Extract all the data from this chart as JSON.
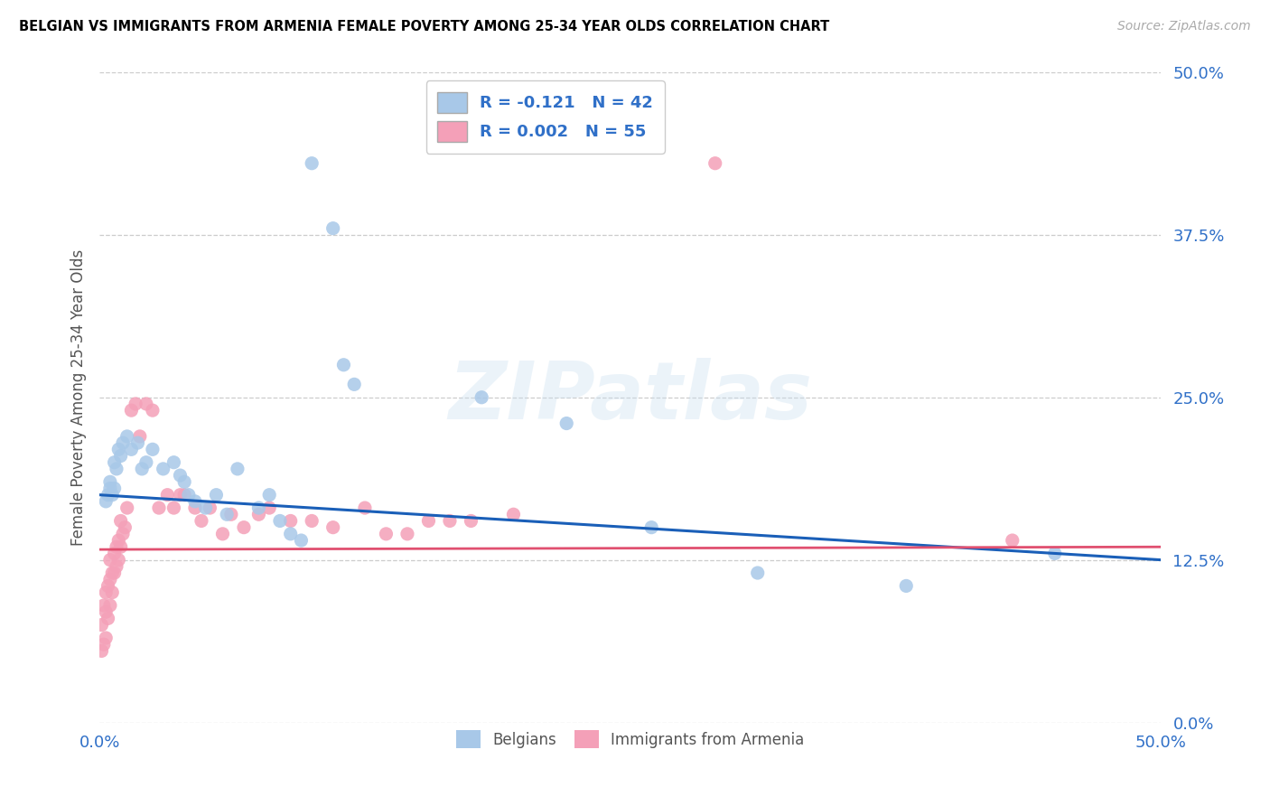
{
  "title": "BELGIAN VS IMMIGRANTS FROM ARMENIA FEMALE POVERTY AMONG 25-34 YEAR OLDS CORRELATION CHART",
  "source": "Source: ZipAtlas.com",
  "ylabel": "Female Poverty Among 25-34 Year Olds",
  "yticks": [
    "0.0%",
    "12.5%",
    "25.0%",
    "37.5%",
    "50.0%"
  ],
  "ytick_vals": [
    0.0,
    0.125,
    0.25,
    0.375,
    0.5
  ],
  "legend_label1": "Belgians",
  "legend_label2": "Immigrants from Armenia",
  "legend_R1": "R = -0.121",
  "legend_N1": "N = 42",
  "legend_R2": "R = 0.002",
  "legend_N2": "N = 55",
  "color_blue": "#a8c8e8",
  "color_pink": "#f4a0b8",
  "color_blue_line": "#1a5fb8",
  "color_pink_line": "#e05070",
  "background": "#ffffff",
  "belgians_x": [
    0.003,
    0.004,
    0.005,
    0.005,
    0.006,
    0.007,
    0.007,
    0.008,
    0.009,
    0.01,
    0.011,
    0.013,
    0.015,
    0.018,
    0.02,
    0.022,
    0.025,
    0.03,
    0.035,
    0.038,
    0.04,
    0.042,
    0.045,
    0.05,
    0.055,
    0.06,
    0.065,
    0.075,
    0.08,
    0.085,
    0.09,
    0.095,
    0.1,
    0.11,
    0.115,
    0.12,
    0.18,
    0.22,
    0.26,
    0.31,
    0.38,
    0.45
  ],
  "belgians_y": [
    0.17,
    0.175,
    0.18,
    0.185,
    0.175,
    0.18,
    0.2,
    0.195,
    0.21,
    0.205,
    0.215,
    0.22,
    0.21,
    0.215,
    0.195,
    0.2,
    0.21,
    0.195,
    0.2,
    0.19,
    0.185,
    0.175,
    0.17,
    0.165,
    0.175,
    0.16,
    0.195,
    0.165,
    0.175,
    0.155,
    0.145,
    0.14,
    0.43,
    0.38,
    0.275,
    0.26,
    0.25,
    0.23,
    0.15,
    0.115,
    0.105,
    0.13
  ],
  "armenia_x": [
    0.001,
    0.001,
    0.002,
    0.002,
    0.003,
    0.003,
    0.003,
    0.004,
    0.004,
    0.005,
    0.005,
    0.005,
    0.006,
    0.006,
    0.007,
    0.007,
    0.008,
    0.008,
    0.009,
    0.009,
    0.01,
    0.01,
    0.011,
    0.012,
    0.013,
    0.015,
    0.017,
    0.019,
    0.022,
    0.025,
    0.028,
    0.032,
    0.035,
    0.038,
    0.04,
    0.045,
    0.048,
    0.052,
    0.058,
    0.062,
    0.068,
    0.075,
    0.08,
    0.09,
    0.1,
    0.11,
    0.125,
    0.135,
    0.145,
    0.155,
    0.165,
    0.175,
    0.195,
    0.29,
    0.43
  ],
  "armenia_y": [
    0.055,
    0.075,
    0.06,
    0.09,
    0.065,
    0.085,
    0.1,
    0.08,
    0.105,
    0.09,
    0.11,
    0.125,
    0.1,
    0.115,
    0.115,
    0.13,
    0.12,
    0.135,
    0.125,
    0.14,
    0.135,
    0.155,
    0.145,
    0.15,
    0.165,
    0.24,
    0.245,
    0.22,
    0.245,
    0.24,
    0.165,
    0.175,
    0.165,
    0.175,
    0.175,
    0.165,
    0.155,
    0.165,
    0.145,
    0.16,
    0.15,
    0.16,
    0.165,
    0.155,
    0.155,
    0.15,
    0.165,
    0.145,
    0.145,
    0.155,
    0.155,
    0.155,
    0.16,
    0.43,
    0.14
  ],
  "xmin": 0.0,
  "xmax": 0.5,
  "ymin": 0.0,
  "ymax": 0.5,
  "watermark": "ZIPatlas",
  "blue_line_x0": 0.0,
  "blue_line_y0": 0.175,
  "blue_line_x1": 0.5,
  "blue_line_y1": 0.125,
  "pink_line_x0": 0.0,
  "pink_line_y0": 0.133,
  "pink_line_x1": 0.5,
  "pink_line_y1": 0.135
}
